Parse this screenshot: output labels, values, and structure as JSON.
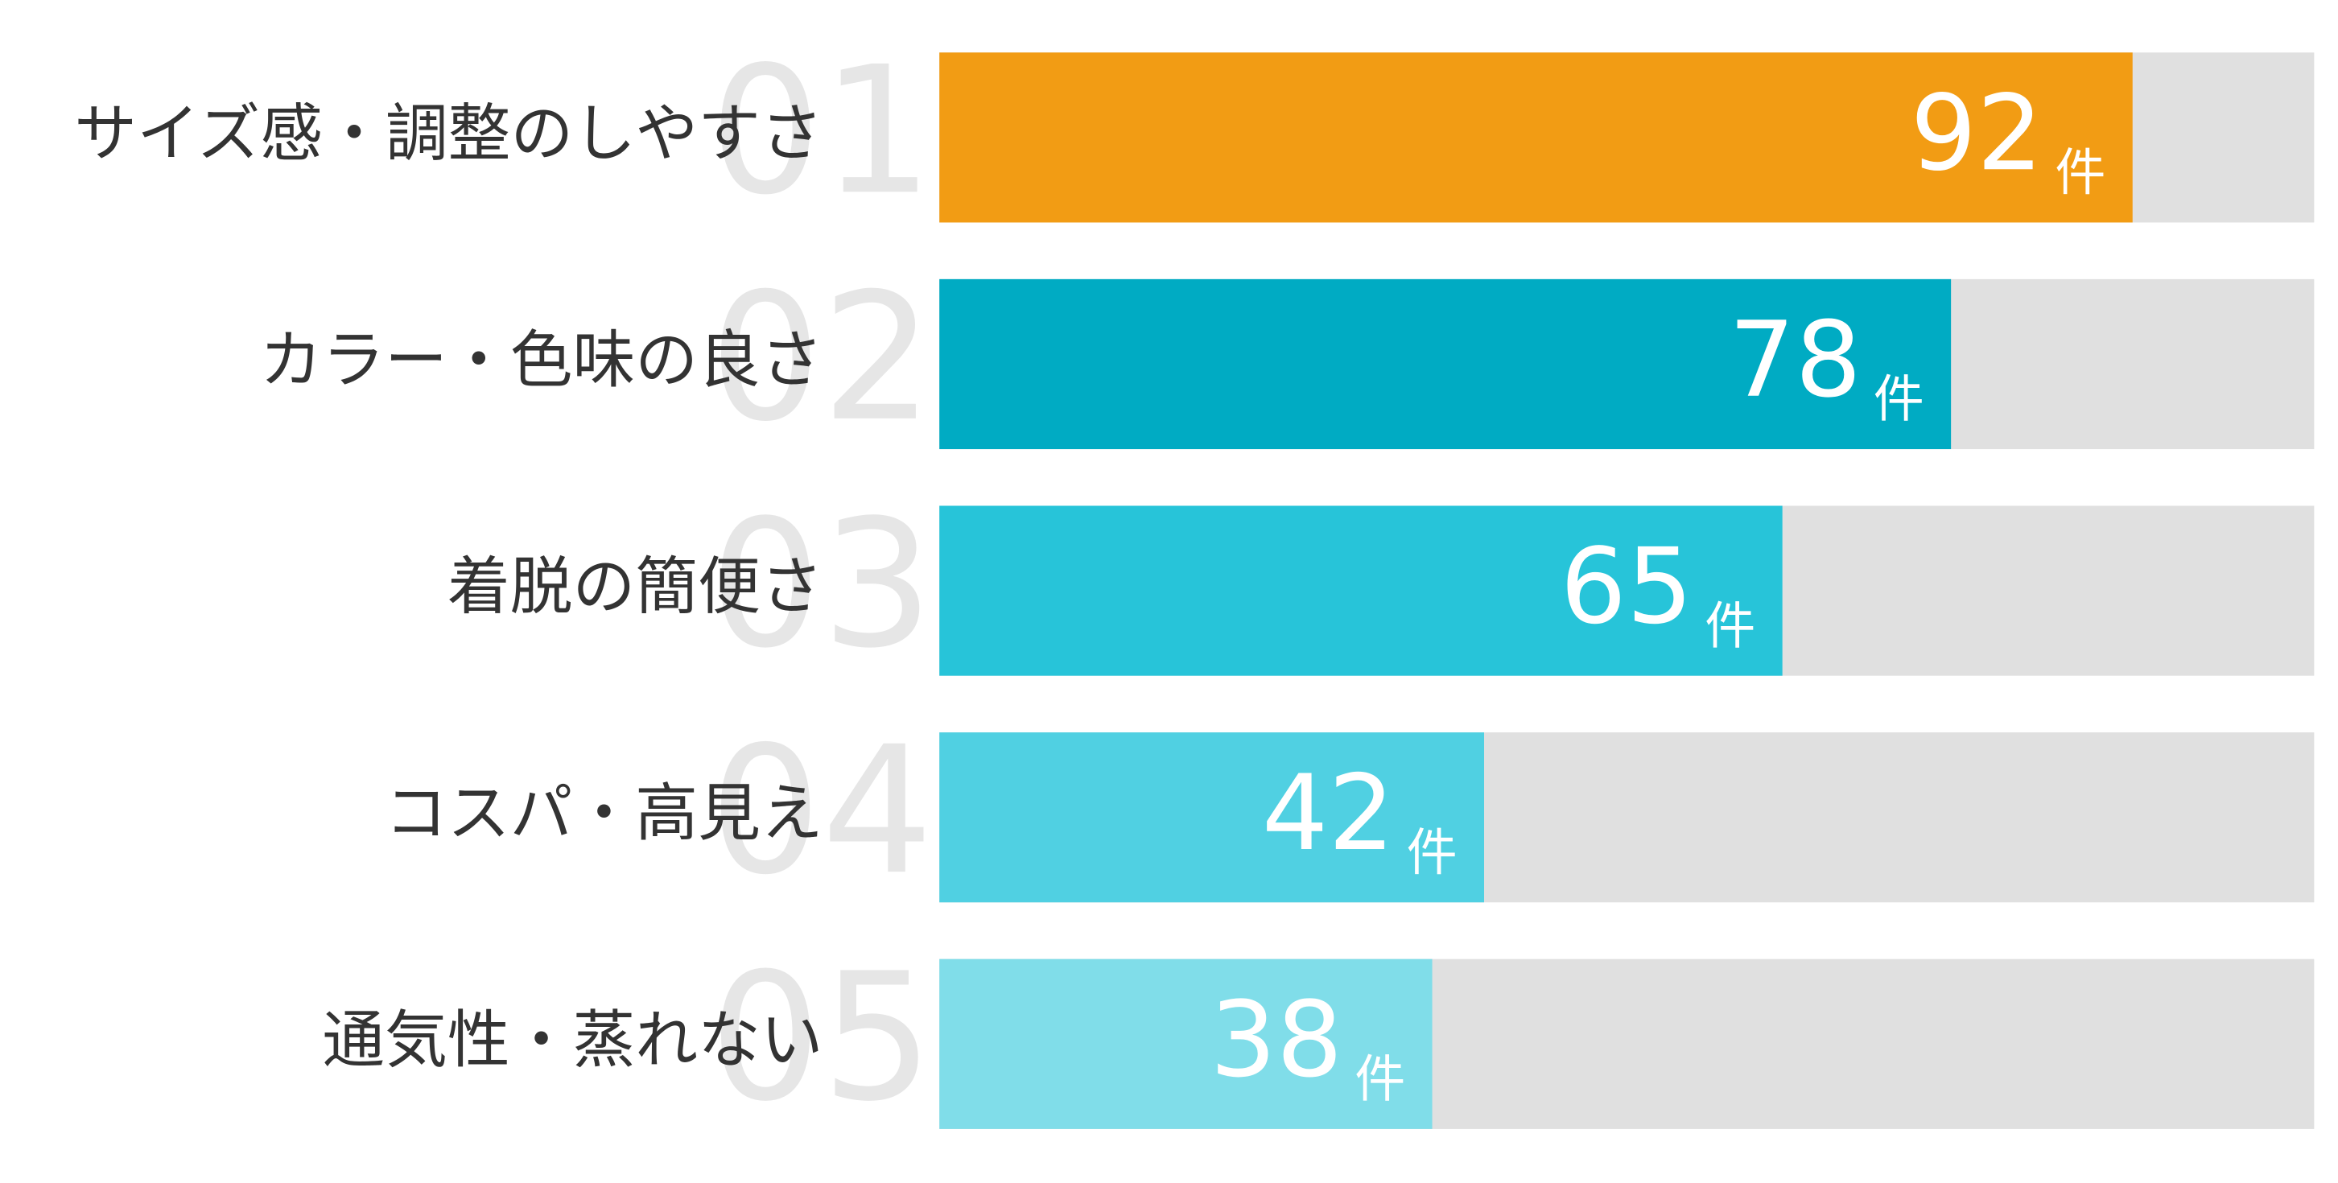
{
  "chart_data": {
    "type": "bar",
    "orientation": "horizontal",
    "categories": [
      "サイズ感・調整のしやすさ",
      "カラー・色味の良さ",
      "着脱の簡便さ",
      "コスパ・高見え",
      "通気性・蒸れない"
    ],
    "ranks": [
      "01",
      "02",
      "03",
      "04",
      "05"
    ],
    "values": [
      92,
      78,
      65,
      42,
      38
    ],
    "unit": "件",
    "colors": [
      "#f29c14",
      "#00abc3",
      "#27c4d9",
      "#50d0e2",
      "#80dde9"
    ],
    "track_color": "#e0e0e0",
    "xlim": [
      0,
      106
    ]
  }
}
